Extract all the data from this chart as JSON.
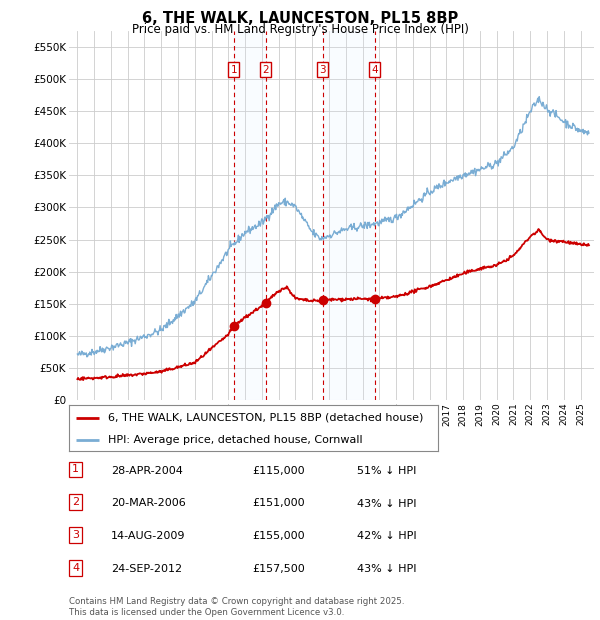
{
  "title": "6, THE WALK, LAUNCESTON, PL15 8BP",
  "subtitle": "Price paid vs. HM Land Registry's House Price Index (HPI)",
  "ylim": [
    0,
    575000
  ],
  "yticks": [
    0,
    50000,
    100000,
    150000,
    200000,
    250000,
    300000,
    350000,
    400000,
    450000,
    500000,
    550000
  ],
  "ytick_labels": [
    "£0",
    "£50K",
    "£100K",
    "£150K",
    "£200K",
    "£250K",
    "£300K",
    "£350K",
    "£400K",
    "£450K",
    "£500K",
    "£550K"
  ],
  "hpi_color": "#7aadd4",
  "price_color": "#cc0000",
  "vline_color": "#cc0000",
  "shade_color": "#ddeeff",
  "background_color": "#ffffff",
  "grid_color": "#cccccc",
  "sale_dates_year": [
    2004.32,
    2006.22,
    2009.62,
    2012.73
  ],
  "sale_prices": [
    115000,
    151000,
    155000,
    157500
  ],
  "sale_labels": [
    "1",
    "2",
    "3",
    "4"
  ],
  "table_rows": [
    [
      "1",
      "28-APR-2004",
      "£115,000",
      "51% ↓ HPI"
    ],
    [
      "2",
      "20-MAR-2006",
      "£151,000",
      "43% ↓ HPI"
    ],
    [
      "3",
      "14-AUG-2009",
      "£155,000",
      "42% ↓ HPI"
    ],
    [
      "4",
      "24-SEP-2012",
      "£157,500",
      "43% ↓ HPI"
    ]
  ],
  "footer": "Contains HM Land Registry data © Crown copyright and database right 2025.\nThis data is licensed under the Open Government Licence v3.0.",
  "legend_entries": [
    "6, THE WALK, LAUNCESTON, PL15 8BP (detached house)",
    "HPI: Average price, detached house, Cornwall"
  ],
  "xlim_left": 1994.5,
  "xlim_right": 2025.8
}
